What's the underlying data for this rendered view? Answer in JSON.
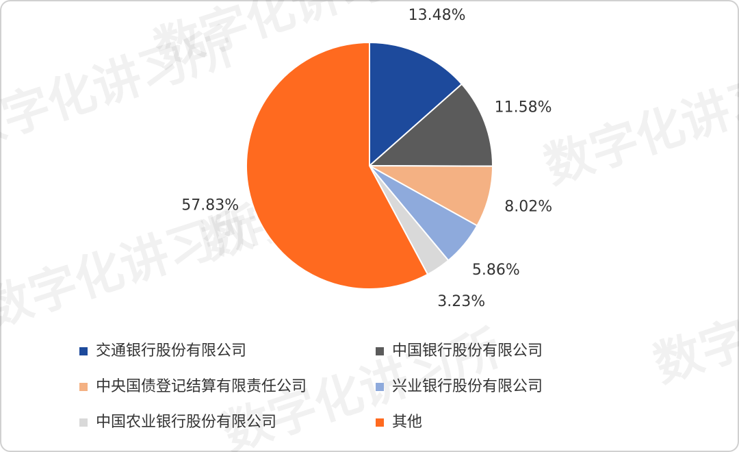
{
  "chart_data": {
    "type": "pie",
    "watermark": "数字化讲习所",
    "categories": [
      "交通银行股份有限公司",
      "中国银行股份有限公司",
      "中央国债登记结算有限责任公司",
      "兴业银行股份有限公司",
      "中国农业银行股份有限公司",
      "其他"
    ],
    "values": [
      13.48,
      11.58,
      8.02,
      5.86,
      3.23,
      57.83
    ],
    "value_labels": [
      "13.48%",
      "11.58%",
      "8.02%",
      "5.86%",
      "3.23%",
      "57.83%"
    ],
    "colors": [
      "#1d4a9c",
      "#5b5b5b",
      "#f4b183",
      "#8eaadc",
      "#d9d9d9",
      "#ff6a1f"
    ]
  }
}
